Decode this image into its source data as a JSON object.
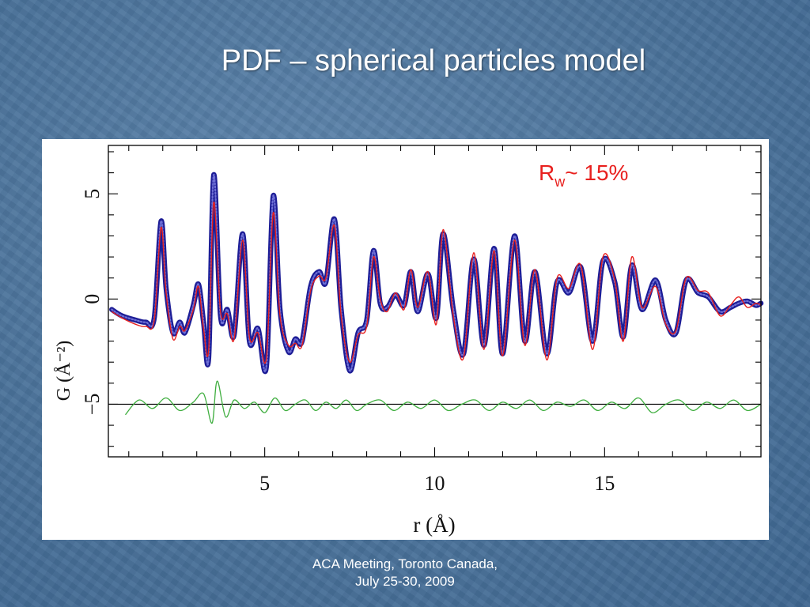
{
  "slide": {
    "title": "PDF – spherical particles model",
    "footer_line1": "ACA Meeting, Toronto Canada,",
    "footer_line2": "July 25-30, 2009"
  },
  "chart_data": {
    "type": "line",
    "title": "",
    "xlabel": "r (Å)",
    "ylabel": "G (Å⁻²)",
    "xlim": [
      0.4,
      19.6
    ],
    "ylim": [
      -7.5,
      7.3
    ],
    "xticks": [
      5,
      10,
      15
    ],
    "yticks": [
      5,
      0,
      -5
    ],
    "annotation": {
      "main": "R",
      "sub": "w",
      "rest": "~ 15%",
      "color": "#e8201e"
    },
    "difference_offset": -5,
    "colors": {
      "data": "#1d1d96",
      "fit": "#e8201e",
      "difference": "#3fae3f",
      "baseline": "#000000"
    },
    "series": [
      {
        "style": "circles",
        "x": [
          0.5,
          0.8,
          1.2,
          1.5,
          1.75,
          1.95,
          2.1,
          2.3,
          2.5,
          2.65,
          2.9,
          3.05,
          3.2,
          3.35,
          3.5,
          3.7,
          3.9,
          4.1,
          4.35,
          4.55,
          4.8,
          5.05,
          5.25,
          5.45,
          5.7,
          5.9,
          6.1,
          6.35,
          6.6,
          6.8,
          7.05,
          7.25,
          7.5,
          7.75,
          8.0,
          8.2,
          8.4,
          8.6,
          8.85,
          9.1,
          9.3,
          9.5,
          9.8,
          10.05,
          10.25,
          10.55,
          10.85,
          11.15,
          11.45,
          11.75,
          12.0,
          12.35,
          12.65,
          12.95,
          13.3,
          13.6,
          13.95,
          14.3,
          14.65,
          14.95,
          15.3,
          15.55,
          15.8,
          16.1,
          16.5,
          16.8,
          17.1,
          17.4,
          17.75,
          18.05,
          18.4,
          18.7,
          18.95,
          19.2,
          19.45,
          19.6
        ],
        "y": [
          -0.5,
          -0.8,
          -1.0,
          -1.1,
          -0.9,
          3.7,
          0.5,
          -1.6,
          -1.1,
          -1.6,
          -0.3,
          0.7,
          -1.1,
          -2.8,
          5.9,
          -0.8,
          -0.5,
          -1.7,
          3.1,
          -2.0,
          -1.4,
          -3.2,
          4.9,
          -0.5,
          -2.5,
          -1.9,
          -2.0,
          0.6,
          1.3,
          0.8,
          3.8,
          -0.5,
          -3.4,
          -1.6,
          -1.0,
          2.3,
          -0.2,
          -0.4,
          0.2,
          -0.3,
          1.3,
          -0.6,
          1.2,
          -0.9,
          3.1,
          -0.5,
          -2.6,
          1.9,
          -2.2,
          2.4,
          -2.6,
          3.0,
          -2.0,
          1.3,
          -2.6,
          0.8,
          0.3,
          1.5,
          -2.0,
          1.8,
          0.8,
          -1.8,
          1.6,
          -0.5,
          0.9,
          -1.0,
          -1.6,
          0.9,
          0.3,
          0.1,
          -0.6,
          -0.4,
          -0.2,
          -0.1,
          -0.3,
          -0.2
        ]
      },
      {
        "style": "line",
        "x": [
          0.5,
          0.8,
          1.2,
          1.5,
          1.75,
          1.95,
          2.1,
          2.3,
          2.5,
          2.65,
          2.9,
          3.05,
          3.2,
          3.35,
          3.5,
          3.7,
          3.9,
          4.1,
          4.35,
          4.55,
          4.8,
          5.05,
          5.25,
          5.45,
          5.7,
          5.9,
          6.1,
          6.35,
          6.6,
          6.8,
          7.05,
          7.25,
          7.5,
          7.75,
          8.0,
          8.2,
          8.4,
          8.6,
          8.85,
          9.1,
          9.3,
          9.5,
          9.8,
          10.05,
          10.25,
          10.55,
          10.85,
          11.15,
          11.45,
          11.75,
          12.0,
          12.35,
          12.65,
          12.95,
          13.3,
          13.6,
          13.95,
          14.3,
          14.65,
          14.95,
          15.3,
          15.55,
          15.8,
          16.1,
          16.5,
          16.8,
          17.1,
          17.4,
          17.75,
          18.05,
          18.4,
          18.7,
          18.95,
          19.2,
          19.45,
          19.6
        ],
        "y": [
          -0.6,
          -0.9,
          -1.2,
          -1.3,
          -1.0,
          3.4,
          0.3,
          -1.9,
          -1.3,
          -1.5,
          -0.5,
          0.6,
          -1.4,
          -2.4,
          4.6,
          -0.6,
          -0.7,
          -1.9,
          2.8,
          -1.8,
          -1.6,
          -2.8,
          4.1,
          -0.8,
          -2.2,
          -2.1,
          -2.2,
          0.4,
          1.1,
          1.0,
          3.5,
          -0.8,
          -3.0,
          -1.7,
          -1.3,
          2.0,
          0.0,
          -0.6,
          0.3,
          -0.5,
          1.4,
          -0.4,
          1.3,
          -1.2,
          3.3,
          -0.8,
          -2.8,
          2.2,
          -2.4,
          2.3,
          -2.7,
          2.8,
          -2.2,
          1.4,
          -2.9,
          1.0,
          0.5,
          1.6,
          -2.4,
          2.0,
          0.9,
          -2.0,
          2.0,
          -0.4,
          0.6,
          -1.2,
          -1.5,
          1.0,
          0.4,
          0.3,
          -0.8,
          -0.3,
          0.1,
          -0.4,
          -0.2,
          -0.3
        ]
      },
      {
        "style": "line",
        "x": [
          0.9,
          1.3,
          1.7,
          2.1,
          2.5,
          2.9,
          3.2,
          3.45,
          3.6,
          3.85,
          4.1,
          4.4,
          4.7,
          5.0,
          5.3,
          5.6,
          5.9,
          6.2,
          6.5,
          6.8,
          7.1,
          7.4,
          7.7,
          8.0,
          8.4,
          8.8,
          9.2,
          9.6,
          10.0,
          10.4,
          10.8,
          11.2,
          11.6,
          12.0,
          12.4,
          12.8,
          13.2,
          13.6,
          14.0,
          14.4,
          14.8,
          15.2,
          15.6,
          16.0,
          16.4,
          16.8,
          17.2,
          17.6,
          18.0,
          18.4,
          18.8,
          19.2,
          19.6
        ],
        "y": [
          -5.5,
          -4.8,
          -5.2,
          -4.7,
          -5.3,
          -4.9,
          -4.5,
          -5.9,
          -3.9,
          -5.6,
          -4.8,
          -5.2,
          -4.9,
          -5.4,
          -4.7,
          -5.3,
          -5.0,
          -4.8,
          -5.3,
          -4.9,
          -5.2,
          -4.8,
          -5.3,
          -5.0,
          -4.8,
          -5.3,
          -4.9,
          -5.2,
          -4.8,
          -5.3,
          -5.0,
          -4.8,
          -5.3,
          -4.9,
          -5.2,
          -4.8,
          -5.3,
          -4.9,
          -5.1,
          -4.8,
          -5.3,
          -4.9,
          -5.2,
          -4.7,
          -5.4,
          -5.0,
          -4.8,
          -5.3,
          -4.9,
          -5.2,
          -4.8,
          -5.3,
          -5.0
        ]
      }
    ]
  }
}
